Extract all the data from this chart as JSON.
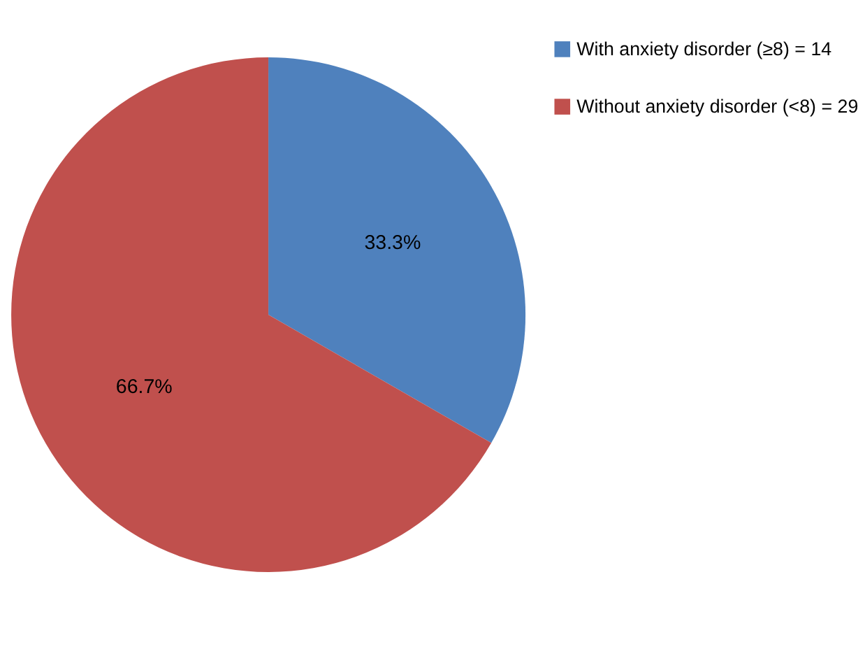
{
  "chart_data": {
    "type": "pie",
    "categories": [
      "With anxiety disorder (≥8) = 14",
      "Without anxiety disorder (<8) = 29"
    ],
    "values": [
      33.3,
      66.7
    ],
    "colors": [
      "#4f81bd",
      "#c0504d"
    ],
    "value_labels": [
      "33.3%",
      "66.7%"
    ],
    "legend": "right"
  }
}
